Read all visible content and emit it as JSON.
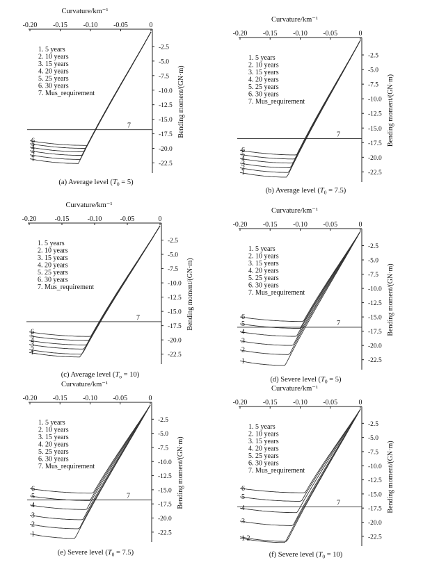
{
  "figure": {
    "shared": {
      "xlabel": "Curvature/km⁻¹",
      "ylabel": "Bending moment/(GN·m)",
      "xticks": [
        "-0.20",
        "-0.15",
        "-0.10",
        "-0.05",
        "0"
      ],
      "xtick_values": [
        -0.2,
        -0.15,
        -0.1,
        -0.05,
        0
      ],
      "yticks": [
        "-2.5",
        "-5.0",
        "-7.5",
        "-10.0",
        "-12.5",
        "-15.0",
        "-17.5",
        "-20.0",
        "-22.5"
      ],
      "ytick_values": [
        -2.5,
        -5.0,
        -7.5,
        -10.0,
        -12.5,
        -15.0,
        -17.5,
        -20.0,
        -22.5
      ],
      "legend": [
        "1. 5 years",
        "2. 10 years",
        "3. 15 years",
        "4. 20 years",
        "5. 25 years",
        "6. 30 years",
        "7. Mus_requirement"
      ]
    }
  },
  "chart_data": [
    {
      "type": "line",
      "caption_pre": "(a) Average level (",
      "caption_var": "T",
      "caption_sub": "0",
      "caption_post": " = 5)",
      "xlim": [
        -0.2,
        0
      ],
      "ylim": [
        -24,
        0
      ],
      "requirement": -16.8,
      "series": [
        {
          "name": "1",
          "label": "1",
          "min": -22.6,
          "kx": -0.12
        },
        {
          "name": "2",
          "label": "2",
          "min": -21.9,
          "kx": -0.117
        },
        {
          "name": "3",
          "label": "3",
          "min": -21.2,
          "kx": -0.114
        },
        {
          "name": "4",
          "label": "4",
          "min": -20.6,
          "kx": -0.111
        },
        {
          "name": "5",
          "label": "5",
          "min": -20.0,
          "kx": -0.108
        },
        {
          "name": "6",
          "label": "6",
          "min": -19.5,
          "kx": -0.105
        }
      ]
    },
    {
      "type": "line",
      "caption_pre": "(b) Average level (",
      "caption_var": "T",
      "caption_sub": "0",
      "caption_post": " = 7.5)",
      "xlim": [
        -0.2,
        0
      ],
      "ylim": [
        -24,
        0
      ],
      "requirement": -16.8,
      "series": [
        {
          "name": "1",
          "label": "1",
          "min": -23.4,
          "kx": -0.122
        },
        {
          "name": "2",
          "label": "2",
          "min": -22.6,
          "kx": -0.119
        },
        {
          "name": "3",
          "label": "3",
          "min": -21.8,
          "kx": -0.116
        },
        {
          "name": "4",
          "label": "4",
          "min": -21.0,
          "kx": -0.112
        },
        {
          "name": "5",
          "label": "5",
          "min": -20.3,
          "kx": -0.109
        },
        {
          "name": "6",
          "label": "6",
          "min": -19.6,
          "kx": -0.106
        }
      ]
    },
    {
      "type": "line",
      "caption_pre": "(c) Average level (",
      "caption_var": "T",
      "caption_sub": "o",
      "caption_post": " = 10)",
      "xlim": [
        -0.2,
        0
      ],
      "ylim": [
        -24,
        0
      ],
      "requirement": -16.8,
      "series": [
        {
          "name": "1",
          "label": "1",
          "min": -23.0,
          "kx": -0.122
        },
        {
          "name": "2",
          "label": "2",
          "min": -22.5,
          "kx": -0.119
        },
        {
          "name": "3",
          "label": "3",
          "min": -21.6,
          "kx": -0.116
        },
        {
          "name": "4",
          "label": "4",
          "min": -20.9,
          "kx": -0.112
        },
        {
          "name": "5",
          "label": "5",
          "min": -20.1,
          "kx": -0.109
        },
        {
          "name": "6",
          "label": "6",
          "min": -19.4,
          "kx": -0.106
        }
      ]
    },
    {
      "type": "line",
      "caption_pre": "(d) Severe level (",
      "caption_var": "T",
      "caption_sub": "0",
      "caption_post": " = 5)",
      "xlim": [
        -0.2,
        0
      ],
      "ylim": [
        -24,
        0
      ],
      "requirement": -16.8,
      "series": [
        {
          "name": "1",
          "label": "1",
          "min": -23.5,
          "kx": -0.125
        },
        {
          "name": "2",
          "label": "2",
          "min": -21.6,
          "kx": -0.118
        },
        {
          "name": "3",
          "label": "3",
          "min": -20.0,
          "kx": -0.112
        },
        {
          "name": "4",
          "label": "4",
          "min": -18.4,
          "kx": -0.106
        },
        {
          "name": "5",
          "label": "5",
          "min": -17.0,
          "kx": -0.1
        },
        {
          "name": "6",
          "label": "6",
          "min": -15.8,
          "kx": -0.095
        }
      ]
    },
    {
      "type": "line",
      "caption_pre": "(e) Severe level (",
      "caption_var": "T",
      "caption_sub": "0",
      "caption_post": " = 7.5)",
      "xlim": [
        -0.2,
        0
      ],
      "ylim": [
        -24,
        0
      ],
      "requirement": -16.8,
      "series": [
        {
          "name": "1",
          "label": "1",
          "min": -23.6,
          "kx": -0.125
        },
        {
          "name": "2",
          "label": "2",
          "min": -21.9,
          "kx": -0.118
        },
        {
          "name": "3",
          "label": "3",
          "min": -20.3,
          "kx": -0.112
        },
        {
          "name": "4",
          "label": "4",
          "min": -18.5,
          "kx": -0.106
        },
        {
          "name": "5",
          "label": "5",
          "min": -16.9,
          "kx": -0.1
        },
        {
          "name": "6",
          "label": "6",
          "min": -15.6,
          "kx": -0.095
        }
      ]
    },
    {
      "type": "line",
      "caption_pre": "(f) Severe level (",
      "caption_var": "T",
      "caption_sub": "0",
      "caption_post": " = 10)",
      "xlim": [
        -0.2,
        0
      ],
      "ylim": [
        -24,
        0
      ],
      "requirement": -17.3,
      "series": [
        {
          "name": "1",
          "label": "1 2",
          "min": -23.6,
          "kx": -0.125
        },
        {
          "name": "2",
          "label": "",
          "min": -23.4,
          "kx": -0.122
        },
        {
          "name": "3",
          "label": "3",
          "min": -20.6,
          "kx": -0.112
        },
        {
          "name": "4",
          "label": "4",
          "min": -18.3,
          "kx": -0.105
        },
        {
          "name": "5",
          "label": "5",
          "min": -16.3,
          "kx": -0.098
        },
        {
          "name": "6",
          "label": "6",
          "min": -14.8,
          "kx": -0.092
        }
      ]
    }
  ]
}
